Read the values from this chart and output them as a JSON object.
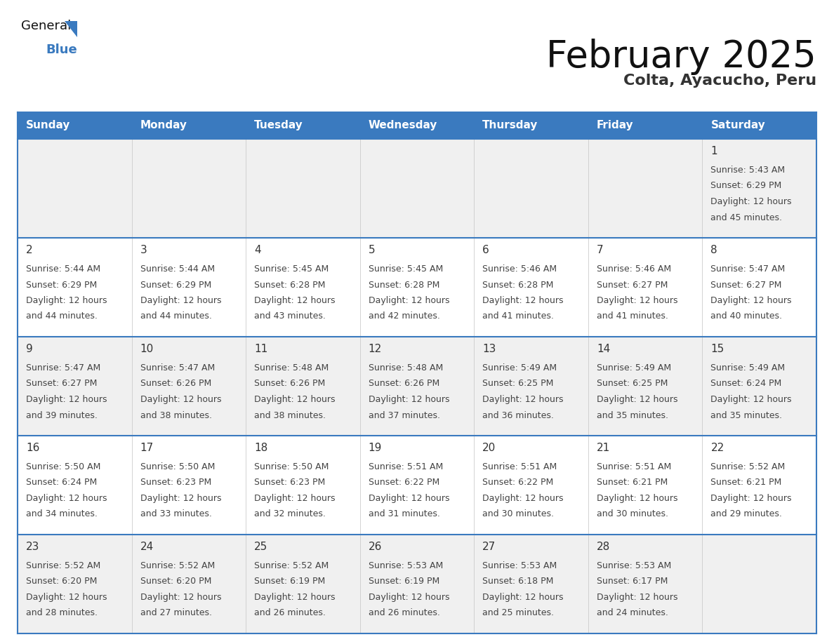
{
  "title": "February 2025",
  "subtitle": "Colta, Ayacucho, Peru",
  "header_bg": "#3a7abf",
  "header_text_color": "#ffffff",
  "cell_bg_light": "#f0f0f0",
  "cell_bg_white": "#ffffff",
  "day_number_color": "#333333",
  "info_text_color": "#444444",
  "border_color": "#3a7abf",
  "row_sep_color": "#3a7abf",
  "col_sep_color": "#cccccc",
  "days_of_week": [
    "Sunday",
    "Monday",
    "Tuesday",
    "Wednesday",
    "Thursday",
    "Friday",
    "Saturday"
  ],
  "weeks": [
    [
      {
        "day": null,
        "info": null
      },
      {
        "day": null,
        "info": null
      },
      {
        "day": null,
        "info": null
      },
      {
        "day": null,
        "info": null
      },
      {
        "day": null,
        "info": null
      },
      {
        "day": null,
        "info": null
      },
      {
        "day": "1",
        "info": "Sunrise: 5:43 AM\nSunset: 6:29 PM\nDaylight: 12 hours\nand 45 minutes."
      }
    ],
    [
      {
        "day": "2",
        "info": "Sunrise: 5:44 AM\nSunset: 6:29 PM\nDaylight: 12 hours\nand 44 minutes."
      },
      {
        "day": "3",
        "info": "Sunrise: 5:44 AM\nSunset: 6:29 PM\nDaylight: 12 hours\nand 44 minutes."
      },
      {
        "day": "4",
        "info": "Sunrise: 5:45 AM\nSunset: 6:28 PM\nDaylight: 12 hours\nand 43 minutes."
      },
      {
        "day": "5",
        "info": "Sunrise: 5:45 AM\nSunset: 6:28 PM\nDaylight: 12 hours\nand 42 minutes."
      },
      {
        "day": "6",
        "info": "Sunrise: 5:46 AM\nSunset: 6:28 PM\nDaylight: 12 hours\nand 41 minutes."
      },
      {
        "day": "7",
        "info": "Sunrise: 5:46 AM\nSunset: 6:27 PM\nDaylight: 12 hours\nand 41 minutes."
      },
      {
        "day": "8",
        "info": "Sunrise: 5:47 AM\nSunset: 6:27 PM\nDaylight: 12 hours\nand 40 minutes."
      }
    ],
    [
      {
        "day": "9",
        "info": "Sunrise: 5:47 AM\nSunset: 6:27 PM\nDaylight: 12 hours\nand 39 minutes."
      },
      {
        "day": "10",
        "info": "Sunrise: 5:47 AM\nSunset: 6:26 PM\nDaylight: 12 hours\nand 38 minutes."
      },
      {
        "day": "11",
        "info": "Sunrise: 5:48 AM\nSunset: 6:26 PM\nDaylight: 12 hours\nand 38 minutes."
      },
      {
        "day": "12",
        "info": "Sunrise: 5:48 AM\nSunset: 6:26 PM\nDaylight: 12 hours\nand 37 minutes."
      },
      {
        "day": "13",
        "info": "Sunrise: 5:49 AM\nSunset: 6:25 PM\nDaylight: 12 hours\nand 36 minutes."
      },
      {
        "day": "14",
        "info": "Sunrise: 5:49 AM\nSunset: 6:25 PM\nDaylight: 12 hours\nand 35 minutes."
      },
      {
        "day": "15",
        "info": "Sunrise: 5:49 AM\nSunset: 6:24 PM\nDaylight: 12 hours\nand 35 minutes."
      }
    ],
    [
      {
        "day": "16",
        "info": "Sunrise: 5:50 AM\nSunset: 6:24 PM\nDaylight: 12 hours\nand 34 minutes."
      },
      {
        "day": "17",
        "info": "Sunrise: 5:50 AM\nSunset: 6:23 PM\nDaylight: 12 hours\nand 33 minutes."
      },
      {
        "day": "18",
        "info": "Sunrise: 5:50 AM\nSunset: 6:23 PM\nDaylight: 12 hours\nand 32 minutes."
      },
      {
        "day": "19",
        "info": "Sunrise: 5:51 AM\nSunset: 6:22 PM\nDaylight: 12 hours\nand 31 minutes."
      },
      {
        "day": "20",
        "info": "Sunrise: 5:51 AM\nSunset: 6:22 PM\nDaylight: 12 hours\nand 30 minutes."
      },
      {
        "day": "21",
        "info": "Sunrise: 5:51 AM\nSunset: 6:21 PM\nDaylight: 12 hours\nand 30 minutes."
      },
      {
        "day": "22",
        "info": "Sunrise: 5:52 AM\nSunset: 6:21 PM\nDaylight: 12 hours\nand 29 minutes."
      }
    ],
    [
      {
        "day": "23",
        "info": "Sunrise: 5:52 AM\nSunset: 6:20 PM\nDaylight: 12 hours\nand 28 minutes."
      },
      {
        "day": "24",
        "info": "Sunrise: 5:52 AM\nSunset: 6:20 PM\nDaylight: 12 hours\nand 27 minutes."
      },
      {
        "day": "25",
        "info": "Sunrise: 5:52 AM\nSunset: 6:19 PM\nDaylight: 12 hours\nand 26 minutes."
      },
      {
        "day": "26",
        "info": "Sunrise: 5:53 AM\nSunset: 6:19 PM\nDaylight: 12 hours\nand 26 minutes."
      },
      {
        "day": "27",
        "info": "Sunrise: 5:53 AM\nSunset: 6:18 PM\nDaylight: 12 hours\nand 25 minutes."
      },
      {
        "day": "28",
        "info": "Sunrise: 5:53 AM\nSunset: 6:17 PM\nDaylight: 12 hours\nand 24 minutes."
      },
      {
        "day": null,
        "info": null
      }
    ]
  ],
  "logo_general_color": "#1a1a1a",
  "logo_blue_color": "#3a7abf",
  "logo_triangle_color": "#3a7abf",
  "title_fontsize": 38,
  "subtitle_fontsize": 16,
  "header_fontsize": 11,
  "day_num_fontsize": 11,
  "info_fontsize": 9
}
